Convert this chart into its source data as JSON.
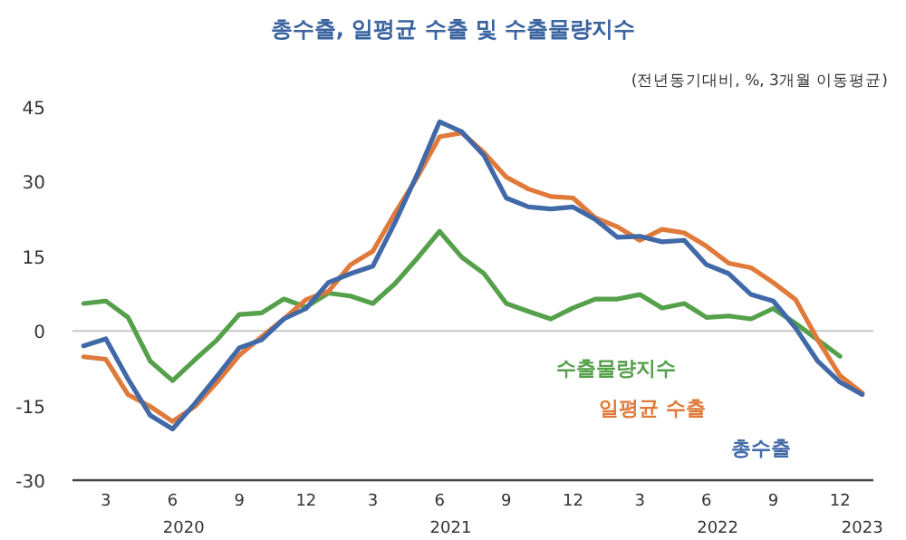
{
  "chart_data": {
    "type": "line",
    "title": "총수출, 일평균 수출 및 수출물량지수",
    "subtitle": "(전년동기대비, %, 3개월 이동평균)",
    "categories": [
      null,
      "3",
      null,
      null,
      "6",
      null,
      null,
      "9",
      null,
      null,
      "12",
      null,
      null,
      "3",
      null,
      null,
      "6",
      null,
      null,
      "9",
      null,
      null,
      "12",
      null,
      null,
      "3",
      null,
      null,
      "6",
      null,
      null,
      "9",
      null,
      null,
      "12",
      null
    ],
    "series": [
      {
        "name": "수출물량지수",
        "color": "#55a04a",
        "values": [
          5.5,
          6,
          2.7,
          -6.1,
          -10,
          -5.8,
          -1.8,
          3.3,
          3.6,
          6.4,
          4.8,
          7.6,
          7,
          5.5,
          9.5,
          14.6,
          20,
          14.8,
          11.5,
          5.5,
          3.9,
          2.4,
          4.6,
          6.4,
          6.4,
          7.3,
          4.6,
          5.5,
          2.7,
          3,
          2.4,
          4.5,
          1.5,
          -1.8,
          -5.1,
          null
        ]
      },
      {
        "name": "일평균 수출",
        "color": "#e07a3a",
        "values": [
          -5.2,
          -5.7,
          -12.8,
          -15.2,
          -18.2,
          -15.2,
          -10.3,
          -4.9,
          -1.2,
          2.4,
          6.3,
          7.9,
          13.3,
          16,
          23.7,
          30.9,
          39,
          39.8,
          35.8,
          30.9,
          28.5,
          27,
          26.7,
          22.7,
          20.9,
          18.2,
          20.4,
          19.7,
          17,
          13.6,
          12.7,
          9.7,
          6.3,
          -1.8,
          -9,
          -12.5
        ]
      },
      {
        "name": "총수출",
        "color": "#4169a8",
        "values": [
          -3,
          -1.6,
          -9.7,
          -17,
          -19.7,
          -14.6,
          -9.1,
          -3.4,
          -1.8,
          2.4,
          4.5,
          9.7,
          11.5,
          13,
          21.8,
          31.5,
          42,
          40,
          35.2,
          26.7,
          24.9,
          24.5,
          24.9,
          22.4,
          18.8,
          19,
          17.9,
          18.2,
          13.3,
          11.5,
          7.3,
          6,
          0.6,
          -6.1,
          -10.3,
          -12.8
        ]
      }
    ],
    "ylim": [
      -30,
      45
    ],
    "yticks": [
      -30,
      -15,
      0,
      15,
      30,
      45
    ],
    "ref_lines": [
      {
        "axis": "y",
        "value": 0,
        "color": "#c8c8c8"
      }
    ],
    "annotations": [
      "2020",
      "2021",
      "2022",
      "2023"
    ],
    "grid": false
  }
}
